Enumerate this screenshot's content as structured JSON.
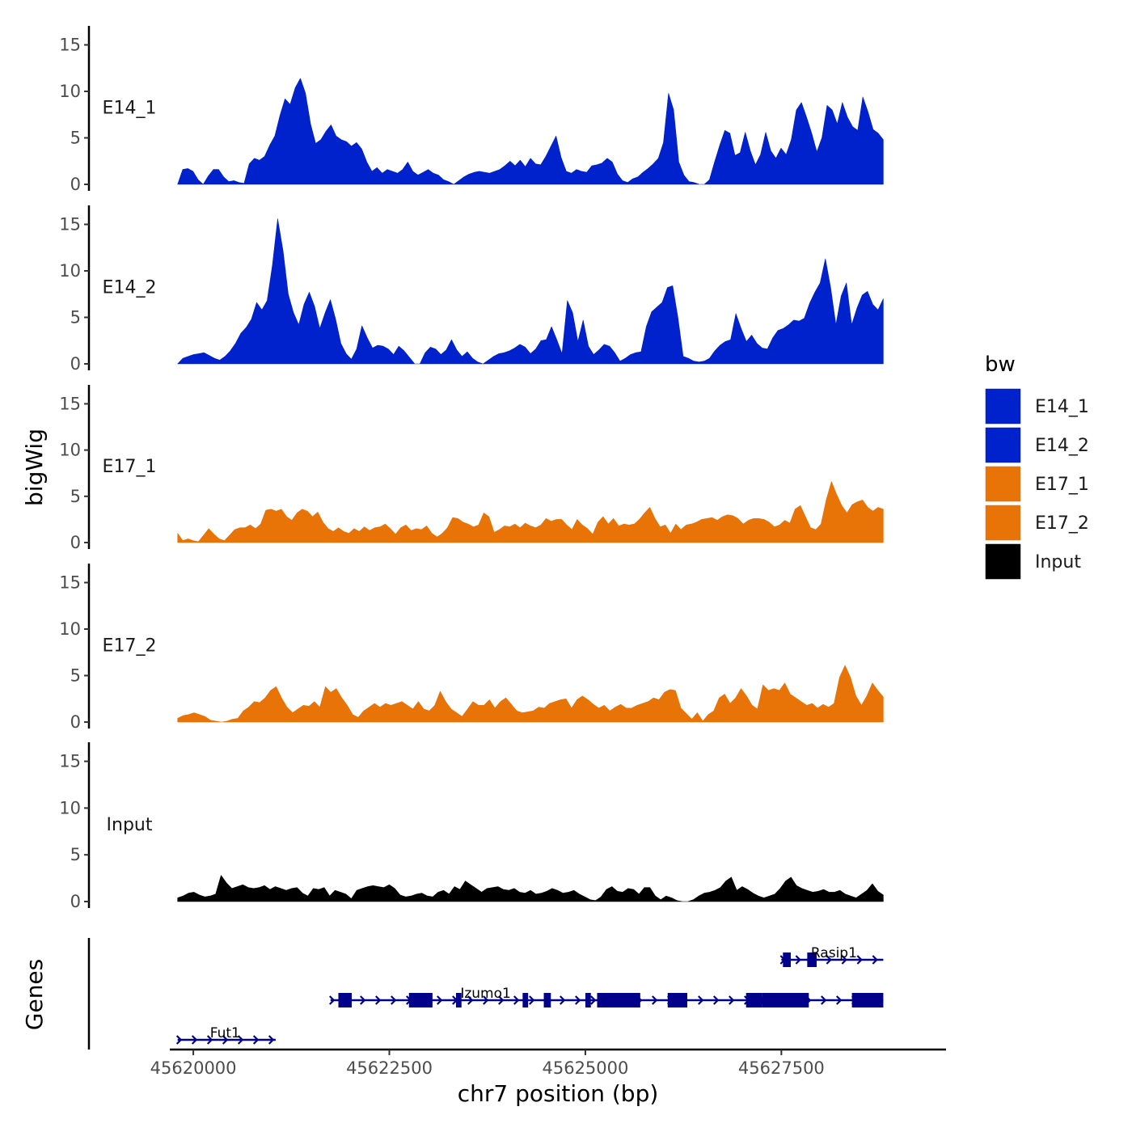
{
  "chart_data": {
    "type": "area",
    "ylabel": "bigWig",
    "xlabel": "chr7 position (bp)",
    "y_ticks": [
      0,
      5,
      10,
      15
    ],
    "ylim": [
      0,
      16
    ],
    "x_ticks": [
      45620000,
      45622500,
      45625000,
      45627500
    ],
    "x_tick_labels": [
      "45620000",
      "45622500",
      "45625000",
      "45627500"
    ],
    "xlim": [
      45619700,
      45629600
    ],
    "data_xrange": [
      45619800,
      45628800
    ],
    "legend": {
      "title": "bw",
      "placement": "right",
      "entries": [
        {
          "label": "E14_1",
          "color": "#0022CC"
        },
        {
          "label": "E14_2",
          "color": "#0022CC"
        },
        {
          "label": "E17_1",
          "color": "#E87306"
        },
        {
          "label": "E17_2",
          "color": "#E87306"
        },
        {
          "label": "Input",
          "color": "#000000"
        }
      ]
    },
    "series": [
      {
        "name": "E14_1",
        "color": "#0022CC",
        "start": 45619800,
        "end": 45628800,
        "values": [
          0,
          1.6,
          1.7,
          1.4,
          0.5,
          0,
          0.9,
          1.6,
          1.6,
          0.8,
          0.3,
          0.4,
          0.2,
          0.1,
          2.2,
          2.8,
          2.6,
          3.0,
          4.2,
          5.2,
          7.4,
          9.2,
          8.6,
          10.4,
          11.4,
          9.8,
          6.5,
          4.4,
          4.8,
          5.7,
          6.4,
          5.2,
          4.8,
          4.6,
          4.1,
          4.5,
          3.8,
          2.4,
          1.4,
          1.8,
          1.2,
          1.6,
          1.4,
          1.2,
          1.6,
          2.4,
          1.4,
          1.0,
          1.3,
          1.6,
          1.2,
          1.0,
          0.5,
          0.3,
          0,
          0.4,
          0.8,
          1.1,
          1.3,
          1.4,
          1.3,
          1.2,
          1.4,
          1.6,
          2.0,
          2.5,
          2.0,
          2.6,
          1.9,
          2.8,
          2.2,
          2.1,
          3.0,
          4.1,
          5.2,
          2.9,
          1.4,
          1.2,
          1.6,
          1.4,
          1.3,
          2.0,
          2.1,
          2.3,
          2.8,
          2.4,
          1.1,
          0.4,
          0.2,
          0.6,
          0.8,
          1.3,
          1.7,
          2.2,
          2.8,
          4.5,
          9.8,
          8.0,
          2.4,
          1.0,
          0.3,
          0.2,
          0,
          0,
          0.5,
          2.4,
          4.2,
          5.8,
          5.5,
          3.1,
          3.4,
          5.6,
          3.6,
          2.1,
          3.2,
          5.6,
          3.6,
          2.8,
          3.9,
          3.2,
          4.8,
          8.0,
          8.8,
          7.2,
          5.5,
          3.5,
          5.0,
          8.5,
          8.0,
          6.5,
          8.8,
          7.2,
          6.2,
          5.8,
          9.4,
          7.8,
          5.9,
          5.5,
          4.8
        ]
      },
      {
        "name": "E14_2",
        "color": "#0022CC",
        "start": 45619800,
        "end": 45628800,
        "values": [
          0,
          0.6,
          0.8,
          1.0,
          1.1,
          1.2,
          0.9,
          0.6,
          0.4,
          0.8,
          1.4,
          2.2,
          3.3,
          3.9,
          4.8,
          6.6,
          5.8,
          6.8,
          10.6,
          15.6,
          12.2,
          7.5,
          5.5,
          4.2,
          6.4,
          7.7,
          6.2,
          3.8,
          5.5,
          6.9,
          4.8,
          2.2,
          1.1,
          0.5,
          1.6,
          4.1,
          2.8,
          1.7,
          2.0,
          1.9,
          1.6,
          1.0,
          1.9,
          1.4,
          0.7,
          0,
          0,
          1.2,
          1.8,
          1.6,
          1.0,
          1.5,
          2.6,
          1.5,
          0.8,
          1.3,
          0.6,
          0.2,
          0,
          0.4,
          0.8,
          1.1,
          1.2,
          1.4,
          1.7,
          2.1,
          1.8,
          1.1,
          1.6,
          2.5,
          2.6,
          4.0,
          2.6,
          1.1,
          6.8,
          5.5,
          2.4,
          4.7,
          1.9,
          1.0,
          1.5,
          2.1,
          1.9,
          1.2,
          0.3,
          0.6,
          1.0,
          1.2,
          1.3,
          4.0,
          5.6,
          6.1,
          6.6,
          8.2,
          8.4,
          5.0,
          0.8,
          0.6,
          0.3,
          0.2,
          0.3,
          0.6,
          1.4,
          2.0,
          2.4,
          2.6,
          5.4,
          3.8,
          2.4,
          3.1,
          2.2,
          1.7,
          1.6,
          2.8,
          3.6,
          3.8,
          4.2,
          4.7,
          4.6,
          4.9,
          6.5,
          7.7,
          8.7,
          11.3,
          8.2,
          4.2,
          7.3,
          8.7,
          4.2,
          6.0,
          7.4,
          7.8,
          6.4,
          5.8,
          7.0
        ]
      },
      {
        "name": "E17_1",
        "color": "#E87306",
        "start": 45619800,
        "end": 45628800,
        "values": [
          1.0,
          0.2,
          0.4,
          0.2,
          0.1,
          0.8,
          1.5,
          0.9,
          0.4,
          0.2,
          0.8,
          1.4,
          1.6,
          1.6,
          1.9,
          1.5,
          2.0,
          3.5,
          3.6,
          3.4,
          3.6,
          2.8,
          2.4,
          3.2,
          3.6,
          3.4,
          2.8,
          3.3,
          2.2,
          1.5,
          1.2,
          1.6,
          1.2,
          1.0,
          1.5,
          1.2,
          1.7,
          1.3,
          1.6,
          1.7,
          2.0,
          1.5,
          0.9,
          1.6,
          1.9,
          1.3,
          1.5,
          1.4,
          1.8,
          1.0,
          0.6,
          1.0,
          1.6,
          2.7,
          2.6,
          2.2,
          2.0,
          1.7,
          1.9,
          3.2,
          2.8,
          1.1,
          1.4,
          1.8,
          1.7,
          2.0,
          1.6,
          2.1,
          1.8,
          1.6,
          1.9,
          2.6,
          2.3,
          2.5,
          2.5,
          1.9,
          1.4,
          2.5,
          1.9,
          1.5,
          0.9,
          2.2,
          2.8,
          2.0,
          2.6,
          1.8,
          2.0,
          1.9,
          2.0,
          2.5,
          3.2,
          3.8,
          2.6,
          1.7,
          1.9,
          1.0,
          2.0,
          1.4,
          1.9,
          2.0,
          2.2,
          2.5,
          2.6,
          2.7,
          2.4,
          2.8,
          3.0,
          2.9,
          2.6,
          2.0,
          2.4,
          2.6,
          2.6,
          2.5,
          2.2,
          1.7,
          1.9,
          2.4,
          2.1,
          3.6,
          4.0,
          2.8,
          1.6,
          1.4,
          2.0,
          4.6,
          6.6,
          5.2,
          4.0,
          3.2,
          4.1,
          4.4,
          4.6,
          3.8,
          3.4,
          3.8,
          3.6
        ]
      },
      {
        "name": "E17_2",
        "color": "#E87306",
        "start": 45619800,
        "end": 45628800,
        "values": [
          0.4,
          0.7,
          0.8,
          1.0,
          0.8,
          0.6,
          0.2,
          0.1,
          0,
          0.1,
          0.3,
          0.4,
          1.2,
          1.6,
          2.2,
          2.1,
          2.6,
          3.4,
          3.8,
          2.6,
          1.6,
          1.0,
          1.4,
          1.8,
          1.7,
          2.2,
          1.6,
          3.8,
          3.2,
          3.6,
          2.6,
          1.8,
          0.8,
          0.5,
          1.2,
          1.6,
          2.0,
          1.6,
          2.0,
          1.8,
          2.0,
          2.2,
          1.8,
          1.4,
          2.2,
          1.4,
          1.2,
          1.8,
          3.3,
          2.2,
          1.4,
          1.0,
          0.6,
          1.4,
          2.2,
          1.8,
          1.8,
          2.4,
          1.5,
          2.2,
          2.6,
          1.9,
          1.2,
          1.0,
          1.1,
          1.2,
          1.6,
          1.5,
          2.0,
          2.2,
          2.4,
          2.5,
          1.5,
          2.4,
          2.8,
          2.4,
          1.9,
          1.5,
          1.8,
          1.2,
          1.6,
          1.9,
          1.5,
          1.5,
          1.8,
          2.0,
          2.2,
          2.6,
          2.4,
          3.2,
          3.5,
          3.4,
          1.5,
          0.9,
          0.3,
          1.0,
          0.1,
          0.8,
          1.2,
          2.6,
          3.0,
          2.0,
          2.6,
          3.6,
          2.8,
          1.8,
          1.4,
          4.0,
          3.4,
          3.6,
          3.4,
          4.2,
          3.0,
          2.6,
          2.2,
          1.8,
          2.0,
          1.5,
          1.9,
          1.6,
          2.0,
          4.8,
          6.1,
          4.8,
          2.8,
          1.8,
          2.8,
          4.2,
          3.4,
          2.7
        ]
      },
      {
        "name": "Input",
        "color": "#000000",
        "start": 45619800,
        "end": 45628800,
        "values": [
          0.4,
          0.6,
          0.9,
          1.0,
          0.7,
          0.5,
          0.6,
          0.8,
          2.8,
          2.0,
          1.4,
          1.6,
          1.8,
          1.5,
          1.4,
          1.5,
          1.7,
          1.3,
          1.6,
          1.4,
          1.2,
          1.4,
          1.5,
          0.9,
          0.6,
          1.4,
          1.3,
          1.5,
          0.6,
          1.2,
          1.0,
          0.8,
          0.3,
          1.2,
          1.4,
          1.6,
          1.7,
          1.6,
          1.5,
          1.8,
          1.4,
          0.7,
          0.5,
          0.6,
          0.8,
          0.9,
          0.6,
          0.5,
          1.0,
          1.2,
          0.8,
          1.6,
          1.3,
          2.2,
          1.8,
          1.4,
          1.0,
          1.4,
          1.5,
          1.6,
          1.3,
          1.2,
          1.4,
          1.0,
          0.9,
          1.2,
          0.8,
          0.9,
          1.1,
          1.4,
          1.2,
          0.9,
          1.0,
          1.2,
          0.8,
          0.5,
          0.2,
          0.1,
          0.5,
          1.3,
          1.6,
          1.1,
          1.0,
          1.4,
          1.3,
          0.8,
          1.5,
          1.5,
          0.6,
          0.2,
          0.6,
          0.4,
          0.1,
          0,
          0,
          0.2,
          0.6,
          0.9,
          1.0,
          1.2,
          1.5,
          2.2,
          2.6,
          1.2,
          1.6,
          1.3,
          0.9,
          0.6,
          0.4,
          0.6,
          0.8,
          1.4,
          2.2,
          2.6,
          1.7,
          1.4,
          1.2,
          1.0,
          1.1,
          1.3,
          1.0,
          1.0,
          1.2,
          0.8,
          0.6,
          0.4,
          0.8,
          1.2,
          1.9,
          1.1,
          0.7
        ]
      }
    ],
    "genes_track": {
      "title": "Genes",
      "genes": [
        {
          "name": "Rasip1",
          "row": 2,
          "start": 45627500,
          "end": 45628800,
          "exons": [
            [
              45627520,
              45627620
            ],
            [
              45627830,
              45627950
            ]
          ]
        },
        {
          "name": "Izumo1",
          "row": 1,
          "start": 45621750,
          "end": 45628800,
          "exons": [
            [
              45621850,
              45622020
            ],
            [
              45622750,
              45623050
            ],
            [
              45623350,
              45623420
            ],
            [
              45624200,
              45624270
            ],
            [
              45624470,
              45624560
            ],
            [
              45625000,
              45625070
            ],
            [
              45625150,
              45625700
            ],
            [
              45626050,
              45626300
            ],
            [
              45627050,
              45627250
            ],
            [
              45627250,
              45627850
            ],
            [
              45628400,
              45628800
            ]
          ]
        },
        {
          "name": "Fut1",
          "row": 0,
          "start": 45619800,
          "end": 45621050,
          "exons": []
        }
      ]
    }
  }
}
